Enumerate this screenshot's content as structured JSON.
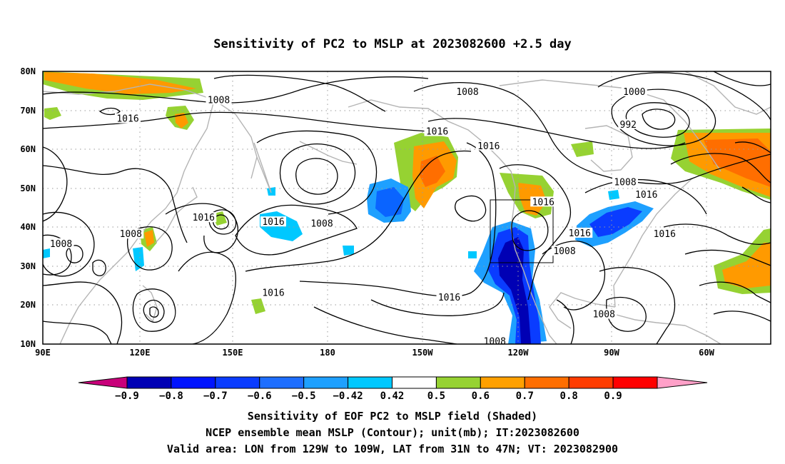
{
  "title": "Sensitivity of PC2 to MSLP at 2023082600 +2.5 day",
  "lat_labels": [
    "80N",
    "70N",
    "60N",
    "50N",
    "40N",
    "30N",
    "20N",
    "10N"
  ],
  "lon_labels": [
    "90E",
    "120E",
    "150E",
    "180",
    "150W",
    "120W",
    "90W",
    "60W"
  ],
  "contour_labels": [
    {
      "text": "1008",
      "lon": 148,
      "lat": 72.6
    },
    {
      "text": "1016",
      "lon": 118,
      "lat": 67.8
    },
    {
      "text": "1008",
      "lon": 230,
      "lat": 74.7
    },
    {
      "text": "1016",
      "lon": 220,
      "lat": 64.5
    },
    {
      "text": "1016",
      "lon": 237,
      "lat": 60.8
    },
    {
      "text": "1000",
      "lon": 285,
      "lat": 74.7
    },
    {
      "text": "992",
      "lon": 283,
      "lat": 66.3
    },
    {
      "text": "1008",
      "lon": 282,
      "lat": 51.5
    },
    {
      "text": "1016",
      "lon": 289,
      "lat": 48.3
    },
    {
      "text": "1016",
      "lon": 143,
      "lat": 42.4
    },
    {
      "text": "1016",
      "lon": 166,
      "lat": 41.3
    },
    {
      "text": "1008",
      "lon": 182,
      "lat": 40.9
    },
    {
      "text": "1008",
      "lon": 96,
      "lat": 35.7
    },
    {
      "text": "1008",
      "lon": 119,
      "lat": 38.2
    },
    {
      "text": "1016",
      "lon": 255,
      "lat": 46.4
    },
    {
      "text": "1016",
      "lon": 267,
      "lat": 38.4
    },
    {
      "text": "1016",
      "lon": 295,
      "lat": 38.2
    },
    {
      "text": "1008",
      "lon": 262,
      "lat": 33.8
    },
    {
      "text": "1016",
      "lon": 166,
      "lat": 23.1
    },
    {
      "text": "1016",
      "lon": 224,
      "lat": 21.9
    },
    {
      "text": "1008",
      "lon": 275,
      "lat": 17.6
    },
    {
      "text": "1008",
      "lon": 239,
      "lat": 10.6
    }
  ],
  "colorbar": {
    "labels": [
      "-0.9",
      "-0.8",
      "-0.7",
      "-0.6",
      "-0.5",
      "-0.42",
      "0.42",
      "0.5",
      "0.6",
      "0.7",
      "0.8",
      "0.9"
    ],
    "colors": [
      "#0000b4",
      "#0014ff",
      "#0a3cff",
      "#1e6eff",
      "#1ea0ff",
      "#00c8ff",
      "#ffffff",
      "#96d232",
      "#ffa000",
      "#ff6e00",
      "#ff3c00",
      "#ff0000"
    ],
    "low_color": "#c8007a",
    "high_color": "#ffa0c8"
  },
  "footer": [
    "Sensitivity of EOF PC2 to MSLP field (Shaded)",
    "NCEP ensemble mean MSLP (Contour); unit(mb); IT:2023082600",
    "Valid area: LON from 129W to 109W, LAT from 31N to 47N; VT: 2023082900"
  ]
}
